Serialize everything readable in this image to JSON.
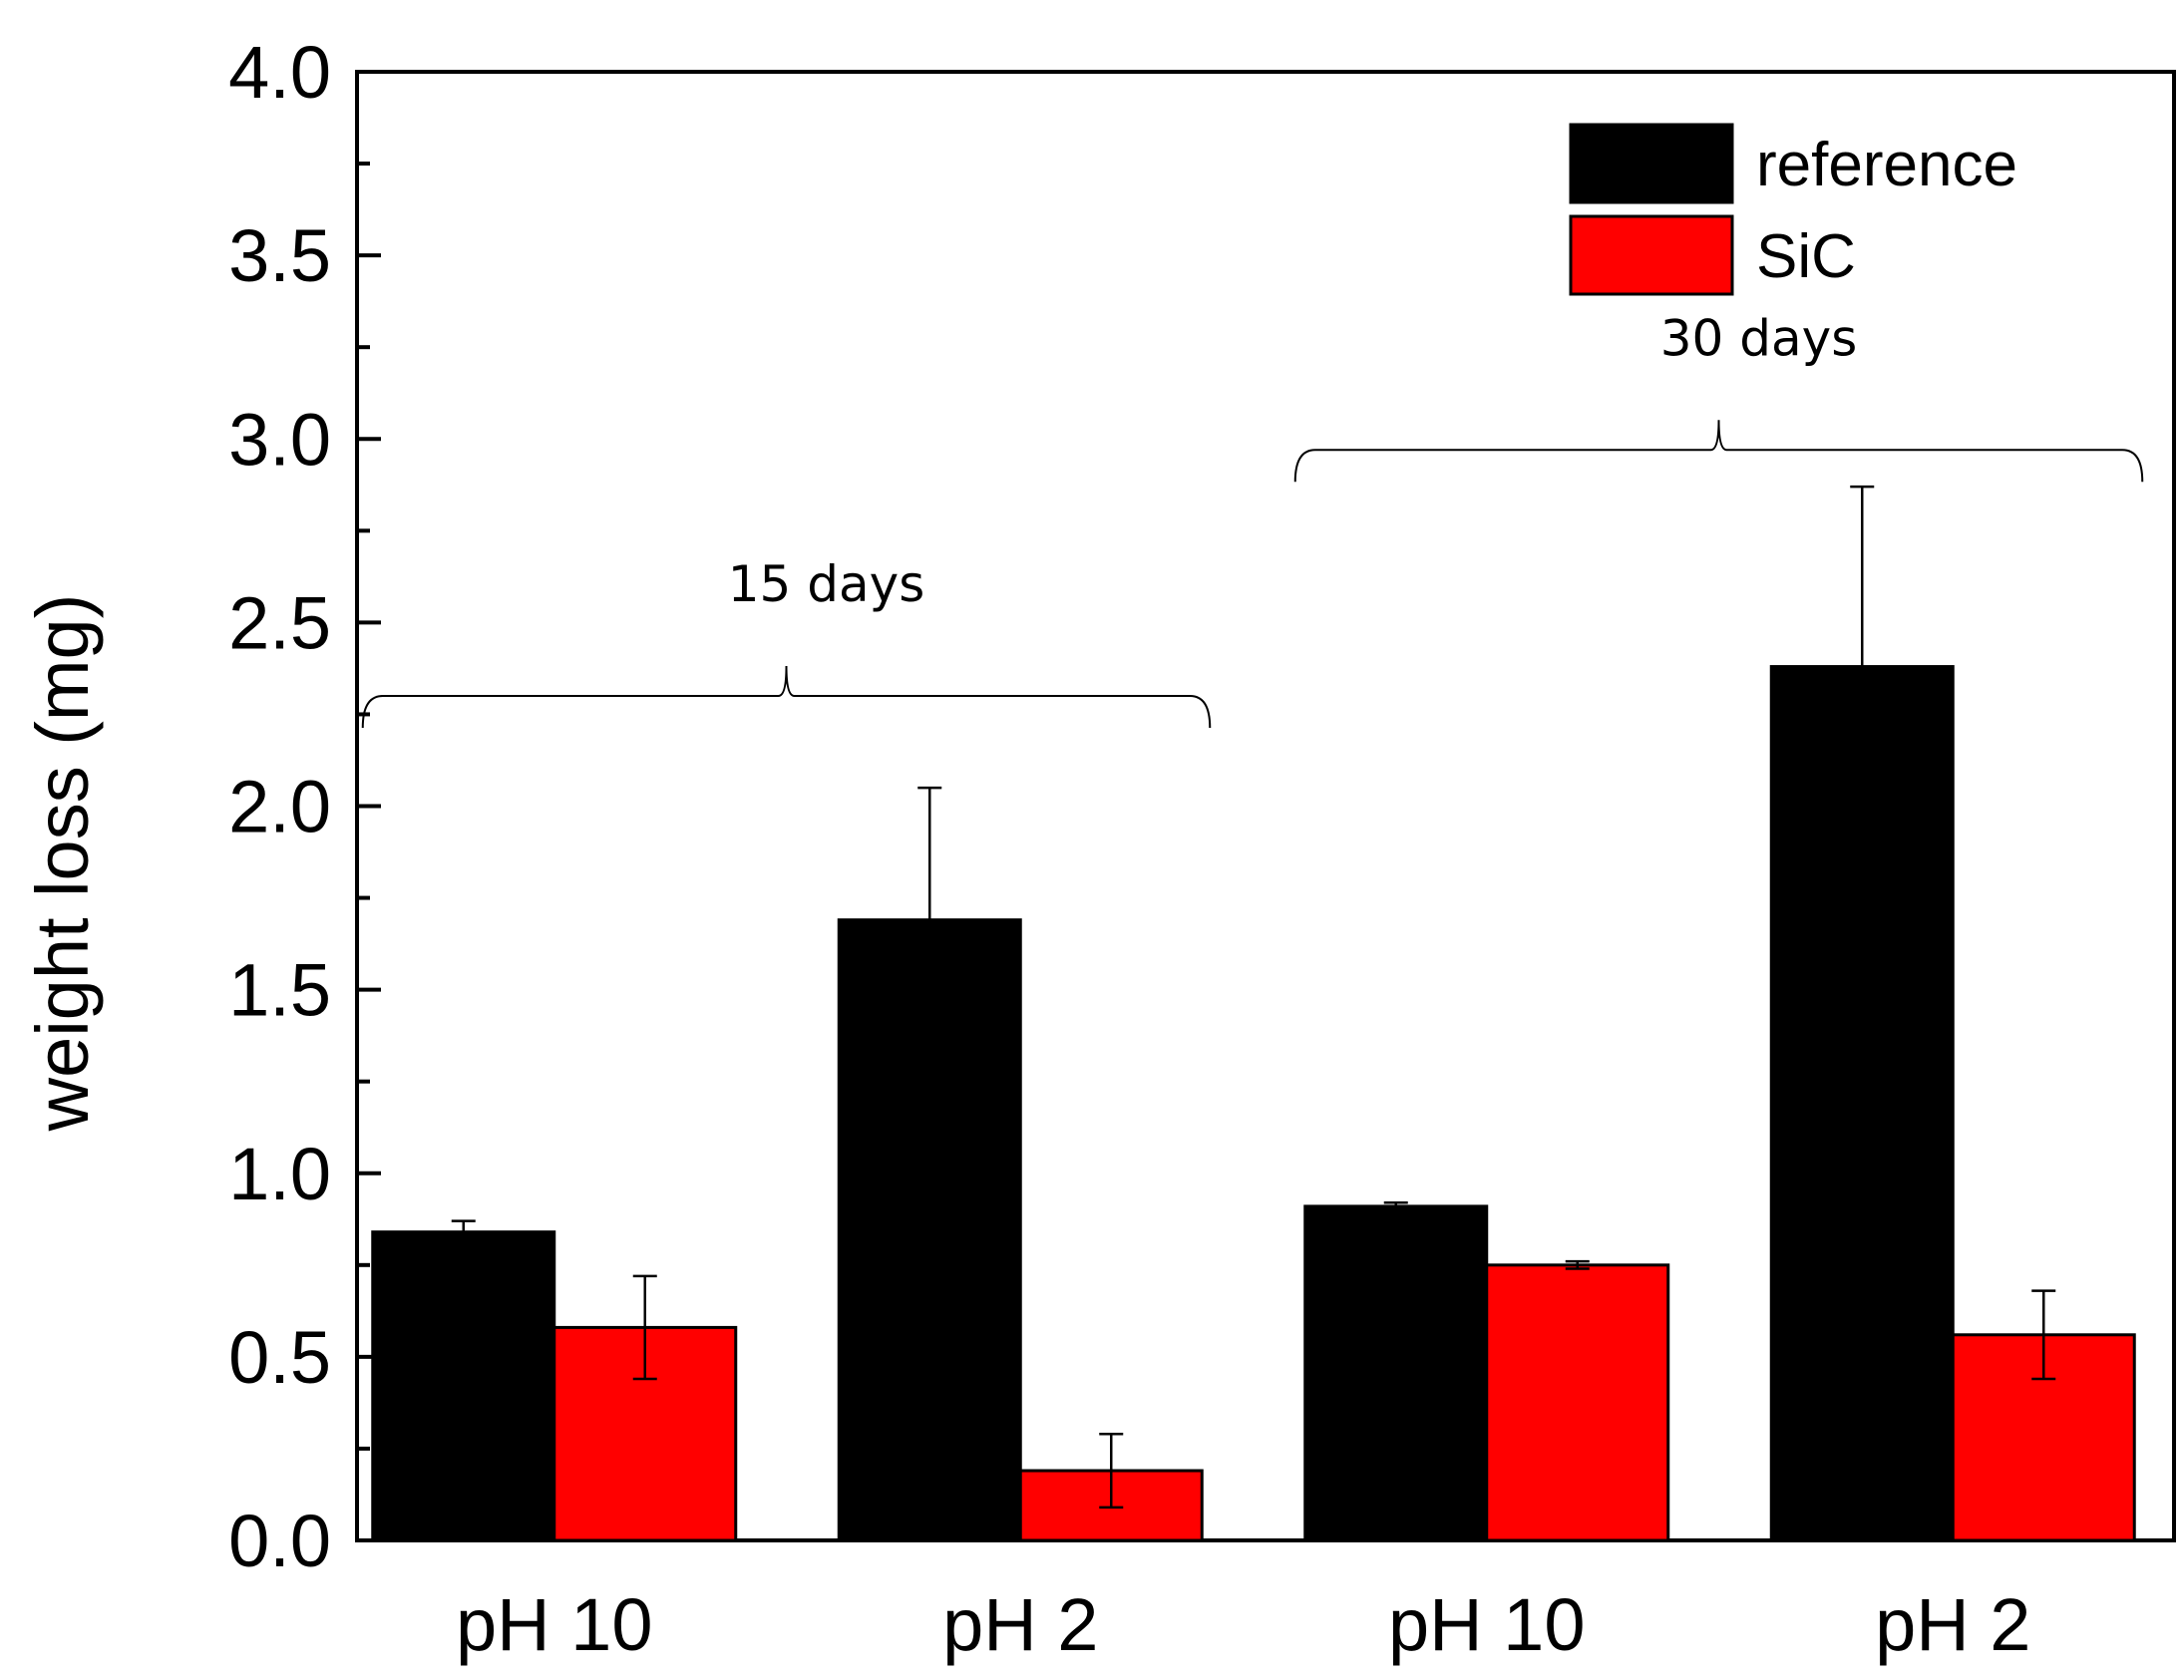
{
  "chart_data": {
    "type": "bar",
    "title": "",
    "xlabel": "",
    "ylabel": "weight loss (mg)",
    "ylim": [
      0,
      4.0
    ],
    "yticks": [
      "0.0",
      "0.5",
      "1.0",
      "1.5",
      "2.0",
      "2.5",
      "3.0",
      "3.5",
      "4.0"
    ],
    "categories": [
      "pH 10",
      "pH 2",
      "pH 10",
      "pH 2"
    ],
    "series": [
      {
        "name": "reference",
        "color": "#000000",
        "values": [
          0.84,
          1.69,
          0.91,
          2.38
        ],
        "errors": [
          0.03,
          0.36,
          0.01,
          0.49
        ]
      },
      {
        "name": "SiC",
        "color": "#ff0000",
        "values": [
          0.58,
          0.19,
          0.75,
          0.56
        ],
        "errors": [
          0.14,
          0.1,
          0.01,
          0.12
        ]
      }
    ],
    "legend": {
      "position": "top-right"
    },
    "annotations": [
      {
        "label": "15 days",
        "from_category": 0,
        "to_category": 1,
        "level": 2.3
      },
      {
        "label": "30 days",
        "from_category": 2,
        "to_category": 3,
        "level": 2.97
      }
    ]
  }
}
